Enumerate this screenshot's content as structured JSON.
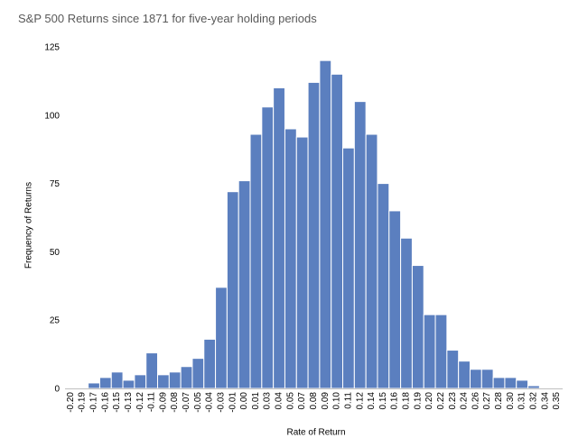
{
  "chart_data": {
    "type": "bar",
    "title": "S&P 500 Returns since 1871 for five-year holding periods",
    "xlabel": "Rate of Return",
    "ylabel": "Frequency of Returns",
    "ylim": [
      0,
      125
    ],
    "yticks": [
      0,
      25,
      50,
      75,
      100,
      125
    ],
    "grid": false,
    "categories": [
      "-0.20",
      "-0.19",
      "-0.17",
      "-0.16",
      "-0.15",
      "-0.13",
      "-0.12",
      "-0.11",
      "-0.09",
      "-0.08",
      "-0.07",
      "-0.05",
      "-0.04",
      "-0.03",
      "-0.01",
      "0.00",
      "0.01",
      "0.03",
      "0.04",
      "0.05",
      "0.07",
      "0.08",
      "0.09",
      "0.10",
      "0.11",
      "0.12",
      "0.14",
      "0.15",
      "0.16",
      "0.18",
      "0.19",
      "0.20",
      "0.22",
      "0.23",
      "0.24",
      "0.26",
      "0.27",
      "0.28",
      "0.30",
      "0.31",
      "0.32",
      "0.34",
      "0.35"
    ],
    "values": [
      0,
      0,
      2,
      4,
      6,
      3,
      5,
      13,
      5,
      6,
      8,
      11,
      18,
      37,
      72,
      76,
      93,
      103,
      110,
      95,
      92,
      112,
      120,
      115,
      88,
      105,
      93,
      75,
      65,
      55,
      45,
      27,
      27,
      14,
      10,
      7,
      7,
      4,
      4,
      3,
      1,
      0,
      0
    ],
    "colors": {
      "bar": "#5b7fbf",
      "bar_edge": "#ffffff",
      "axis": "#bfbfbf"
    }
  }
}
